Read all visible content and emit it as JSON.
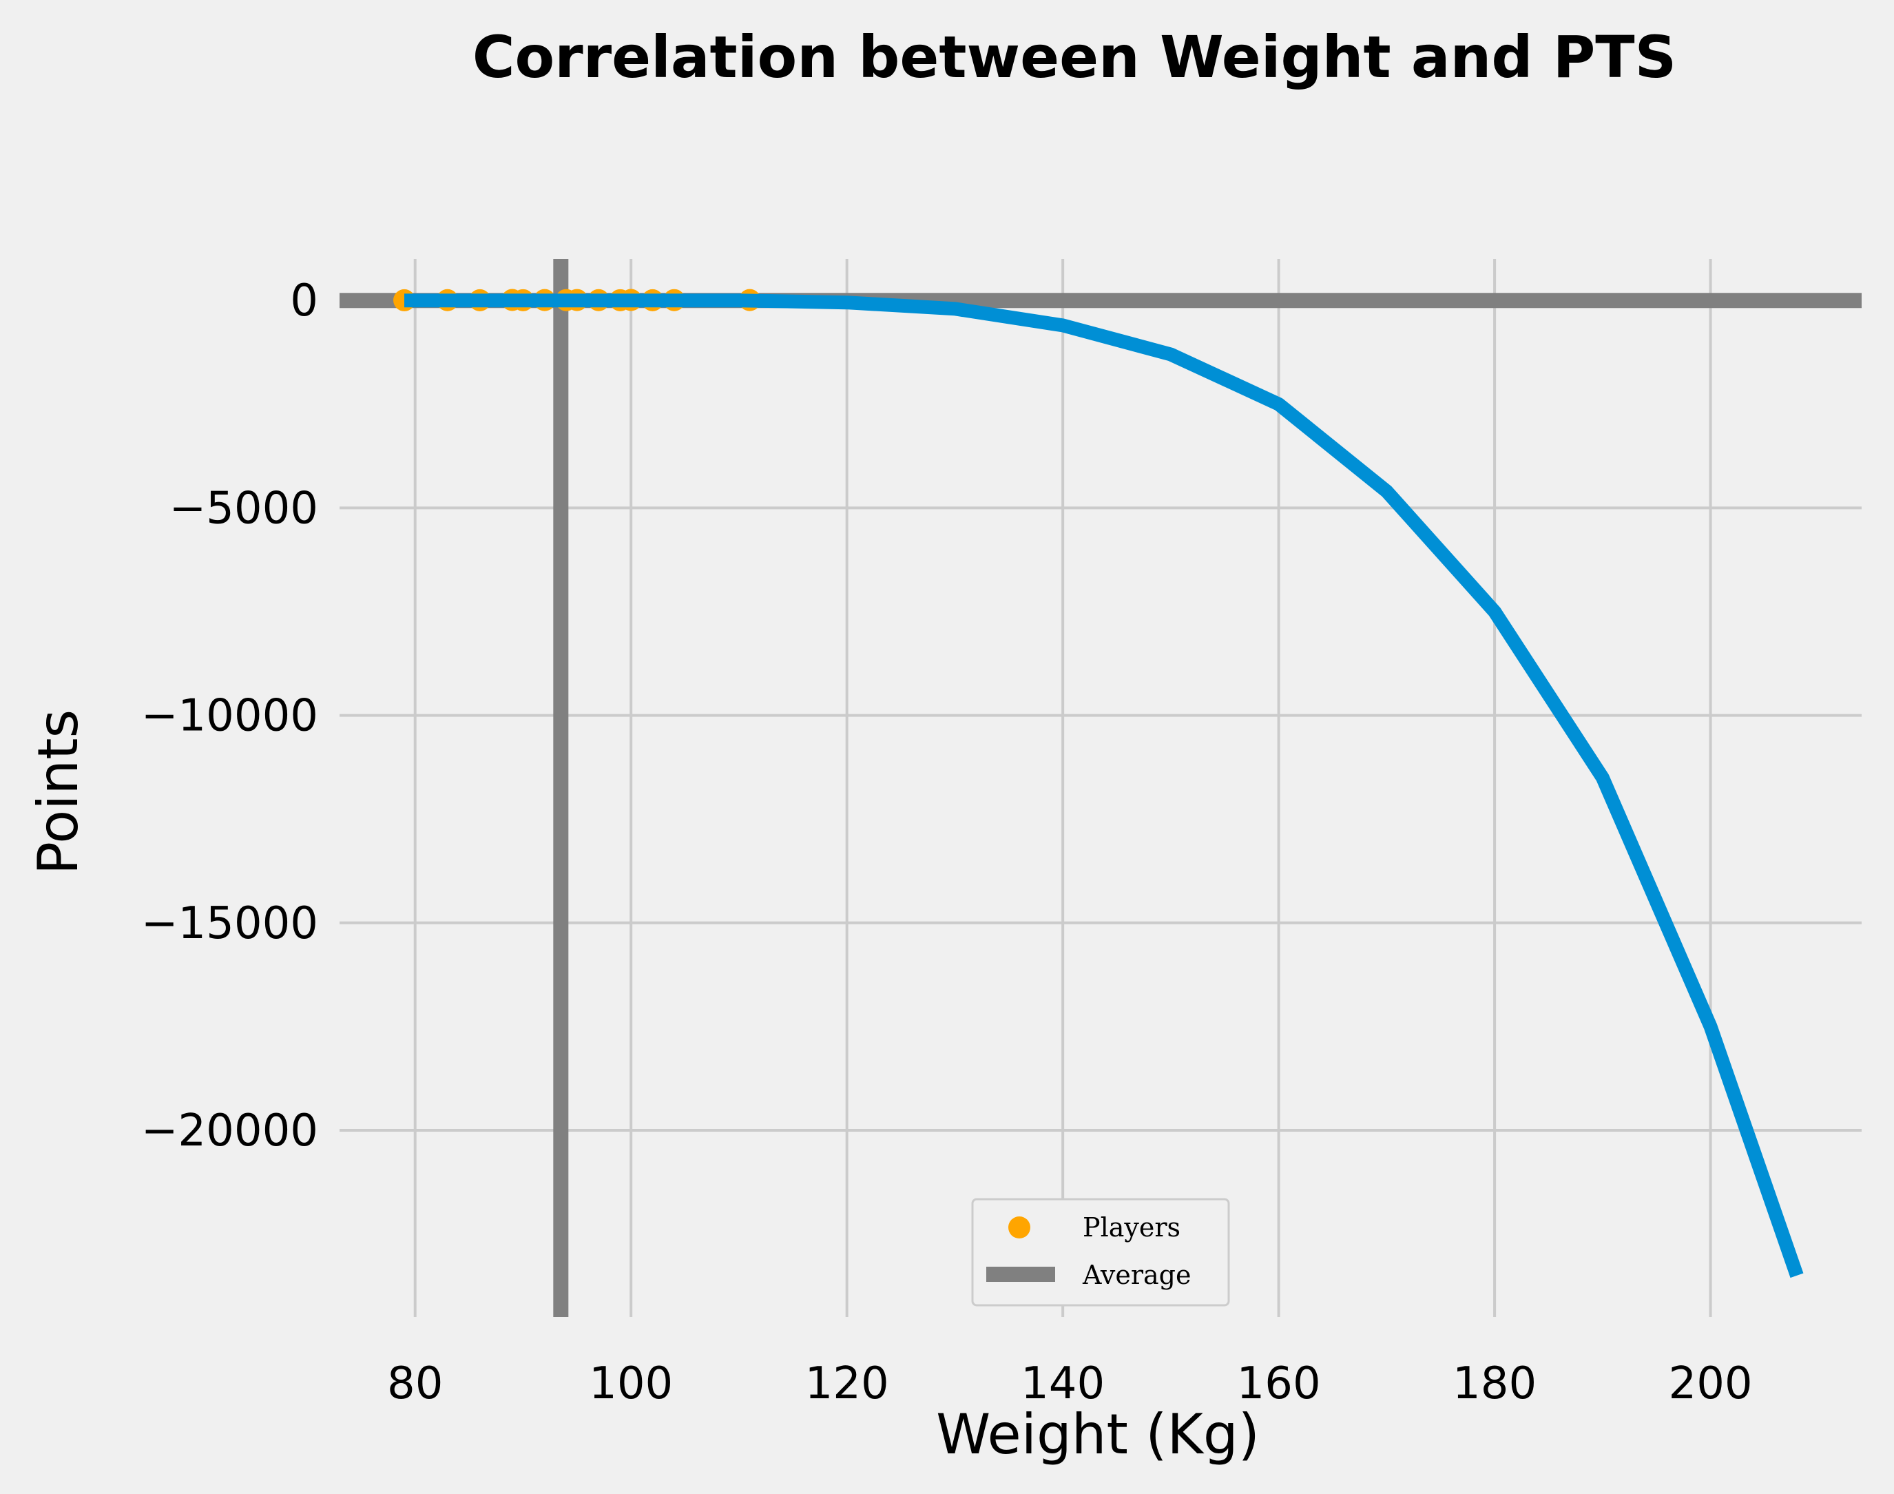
{
  "chart_data": {
    "type": "scatter",
    "title": "Correlation between Weight and PTS",
    "xlabel": "Weight (Kg)",
    "ylabel": "Points",
    "xlim": [
      73,
      214
    ],
    "ylim": [
      -24500,
      1000
    ],
    "x_ticks": [
      80,
      100,
      120,
      140,
      160,
      180,
      200
    ],
    "y_ticks": [
      0,
      -5000,
      -10000,
      -15000,
      -20000
    ],
    "y_tick_labels": [
      "0",
      "−5000",
      "−10000",
      "−15000",
      "−20000"
    ],
    "grid": true,
    "legend_position": "lower-center",
    "series": [
      {
        "name": "Players",
        "kind": "scatter",
        "color": "#ffa500",
        "x": [
          79,
          83,
          86,
          89,
          90,
          92,
          94,
          95,
          97,
          99,
          100,
          102,
          104,
          111
        ],
        "y": [
          5,
          8,
          6,
          12,
          7,
          10,
          9,
          11,
          8,
          7,
          12,
          6,
          9,
          10
        ]
      },
      {
        "name": "Average",
        "kind": "reference-lines",
        "color": "#808080",
        "x_value": 93.5,
        "y_value": 0
      },
      {
        "kind": "line",
        "color": "#008fd5",
        "x": [
          79,
          90,
          100,
          110,
          120,
          130,
          140,
          150,
          160,
          170,
          180,
          190,
          200,
          208
        ],
        "y": [
          0,
          0,
          0,
          0,
          -50,
          -200,
          -600,
          -1300,
          -2500,
          -4600,
          -7500,
          -11500,
          -17500,
          -23500
        ]
      }
    ]
  }
}
